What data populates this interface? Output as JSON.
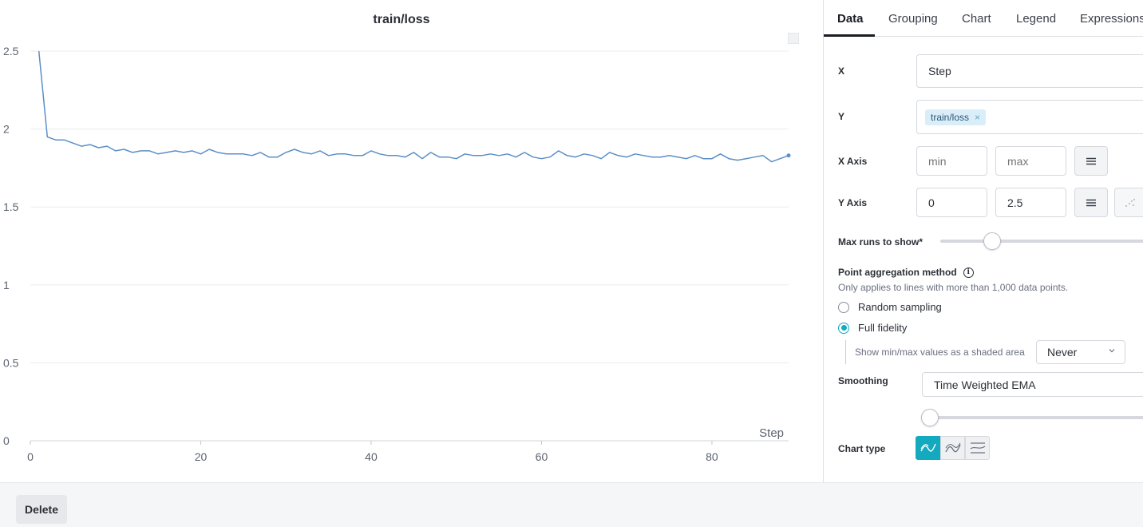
{
  "chart": {
    "title": "train/loss",
    "x_axis_name": "Step"
  },
  "chart_data": {
    "type": "line",
    "title": "train/loss",
    "xlabel": "Step",
    "ylabel": "",
    "xlim": [
      0,
      89
    ],
    "ylim": [
      0,
      2.5
    ],
    "x_ticks": [
      "0",
      "20",
      "40",
      "60",
      "80"
    ],
    "y_ticks": [
      "0",
      "0.5",
      "1",
      "1.5",
      "2",
      "2.5"
    ],
    "grid": true,
    "series": [
      {
        "color": "#5b8fc7",
        "x": [
          1,
          2,
          3,
          4,
          5,
          6,
          7,
          8,
          9,
          10,
          11,
          12,
          13,
          14,
          15,
          16,
          17,
          18,
          19,
          20,
          21,
          22,
          23,
          24,
          25,
          26,
          27,
          28,
          29,
          30,
          31,
          32,
          33,
          34,
          35,
          36,
          37,
          38,
          39,
          40,
          41,
          42,
          43,
          44,
          45,
          46,
          47,
          48,
          49,
          50,
          51,
          52,
          53,
          54,
          55,
          56,
          57,
          58,
          59,
          60,
          61,
          62,
          63,
          64,
          65,
          66,
          67,
          68,
          69,
          70,
          71,
          72,
          73,
          74,
          75,
          76,
          77,
          78,
          79,
          80,
          81,
          82,
          83,
          84,
          85,
          86,
          87,
          88,
          89
        ],
        "values": [
          2.5,
          1.95,
          1.93,
          1.93,
          1.91,
          1.89,
          1.9,
          1.88,
          1.89,
          1.86,
          1.87,
          1.85,
          1.86,
          1.86,
          1.84,
          1.85,
          1.86,
          1.85,
          1.86,
          1.84,
          1.87,
          1.85,
          1.84,
          1.84,
          1.84,
          1.83,
          1.85,
          1.82,
          1.82,
          1.85,
          1.87,
          1.85,
          1.84,
          1.86,
          1.83,
          1.84,
          1.84,
          1.83,
          1.83,
          1.86,
          1.84,
          1.83,
          1.83,
          1.82,
          1.85,
          1.81,
          1.85,
          1.82,
          1.82,
          1.81,
          1.84,
          1.83,
          1.83,
          1.84,
          1.83,
          1.84,
          1.82,
          1.85,
          1.82,
          1.81,
          1.82,
          1.86,
          1.83,
          1.82,
          1.84,
          1.83,
          1.81,
          1.85,
          1.83,
          1.82,
          1.84,
          1.83,
          1.82,
          1.82,
          1.83,
          1.82,
          1.81,
          1.83,
          1.81,
          1.81,
          1.84,
          1.81,
          1.8,
          1.81,
          1.82,
          1.83,
          1.79,
          1.81,
          1.83
        ]
      }
    ]
  },
  "tabs": [
    {
      "label": "Data",
      "active": true
    },
    {
      "label": "Grouping",
      "active": false
    },
    {
      "label": "Chart",
      "active": false
    },
    {
      "label": "Legend",
      "active": false
    },
    {
      "label": "Expressions",
      "active": false
    }
  ],
  "settings": {
    "x_label": "X",
    "x_value": "Step",
    "y_label": "Y",
    "y_chip": "train/loss",
    "y_chip_remove": "×",
    "x_axis_label": "X Axis",
    "x_axis_min_placeholder": "min",
    "x_axis_max_placeholder": "max",
    "y_axis_label": "Y Axis",
    "y_axis_min": "0",
    "y_axis_max": "2.5",
    "max_runs_label": "Max runs to show*",
    "max_runs_fraction": 0.25,
    "aggregation_label": "Point aggregation method",
    "aggregation_info": "i",
    "aggregation_hint": "Only applies to lines with more than 1,000 data points.",
    "random_sampling": "Random sampling",
    "full_fidelity": "Full fidelity",
    "selected_method": "Full fidelity",
    "shaded_area_label": "Show min/max values as a shaded area",
    "shaded_area_value": "Never",
    "smoothing_label": "Smoothing",
    "smoothing_value": "Time Weighted EMA",
    "smoothing_fraction": 0,
    "chart_type_label": "Chart type",
    "chart_types": [
      "line-chart-icon",
      "area-chart-icon",
      "percent-area-chart-icon"
    ],
    "selected_chart_type": "line-chart-icon",
    "accent_color": "#13a9be"
  },
  "footer": {
    "delete_label": "Delete"
  }
}
